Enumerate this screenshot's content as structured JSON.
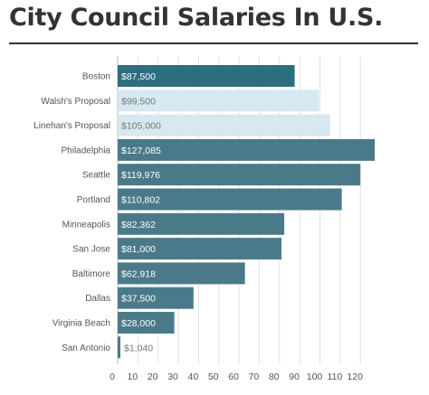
{
  "title": "City Council Salaries In U.S.",
  "chart_data": {
    "type": "bar",
    "orientation": "horizontal",
    "xlabel": "",
    "ylabel": "",
    "xlim": [
      0,
      125
    ],
    "grid": true,
    "x_ticks": [
      0,
      10,
      20,
      30,
      40,
      50,
      60,
      70,
      80,
      90,
      100,
      110,
      120
    ],
    "categories": [
      "Boston",
      "Walsh's Proposal",
      "Linehan's Proposal",
      "Philadelphia",
      "Seattle",
      "Portland",
      "Minneapolis",
      "San Jose",
      "Baltimore",
      "Dallas",
      "Virginia Beach",
      "San Antonio"
    ],
    "values": [
      87.5,
      99.5,
      105.0,
      127.085,
      119.976,
      110.802,
      82.362,
      81.0,
      62.918,
      37.5,
      28.0,
      1.04
    ],
    "labels": [
      "$87,500",
      "$99,500",
      "$105,000",
      "$127,085",
      "$119,976",
      "$110,802",
      "$82,362",
      "$81,000",
      "$62,918",
      "$37,500",
      "$28,000",
      "$1,040"
    ],
    "colors": [
      "#2b6e80",
      "#d6e9f1",
      "#d6e9f1",
      "#4a7a89",
      "#4a7a89",
      "#4a7a89",
      "#4a7a89",
      "#4a7a89",
      "#4a7a89",
      "#4a7a89",
      "#4a7a89",
      "#4a7a89"
    ],
    "label_style": [
      "dark",
      "light",
      "light",
      "dark",
      "dark",
      "dark",
      "dark",
      "dark",
      "dark",
      "dark",
      "dark",
      "light"
    ]
  }
}
